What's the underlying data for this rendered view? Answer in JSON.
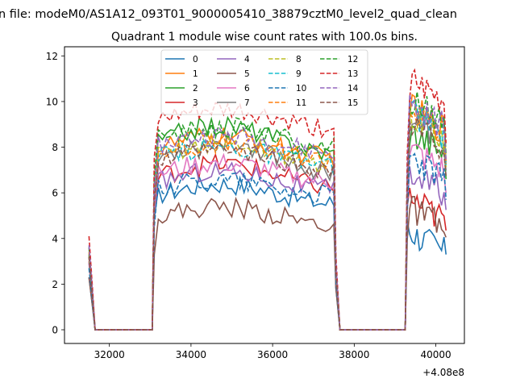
{
  "figure": {
    "suptitle": "n file: modeM0/AS1A12_093T01_9000005410_38879cztM0_level2_quad_clean",
    "offset_label": "+4.08e8"
  },
  "chart_data": {
    "type": "line",
    "title": "Quadrant 1 module wise count rates with 100.0s bins.",
    "xlabel": "",
    "ylabel": "",
    "x_offset": 408000000,
    "xlim": [
      30900,
      40700
    ],
    "ylim": [
      -0.6,
      12.4
    ],
    "xticks": [
      32000,
      34000,
      36000,
      38000,
      40000
    ],
    "xtick_labels": [
      "32000",
      "34000",
      "36000",
      "38000",
      "40000"
    ],
    "yticks": [
      0,
      2,
      4,
      6,
      8,
      10,
      12
    ],
    "ytick_labels": [
      "0",
      "2",
      "4",
      "6",
      "8",
      "10",
      "12"
    ],
    "grid": false,
    "legend_placement": "upper-center",
    "legend_columns": 4,
    "time_segments": [
      [
        31500,
        31600
      ],
      [
        31650,
        33050
      ],
      [
        33100,
        37500
      ],
      [
        37550,
        37650
      ],
      [
        37700,
        39250
      ],
      [
        39300,
        40250
      ]
    ],
    "series": [
      {
        "name": "0",
        "color": "#1f77b4",
        "dash": "solid",
        "seg1": 2.3,
        "on_low": 5.3,
        "on_high": 6.5,
        "seg2": 4.4
      },
      {
        "name": "1",
        "color": "#ff7f0e",
        "dash": "solid",
        "seg1": 3.2,
        "on_low": 7.3,
        "on_high": 8.6,
        "seg2": 9.8
      },
      {
        "name": "2",
        "color": "#2ca02c",
        "dash": "solid",
        "seg1": 3.0,
        "on_low": 7.4,
        "on_high": 9.1,
        "seg2": 8.8
      },
      {
        "name": "3",
        "color": "#d62728",
        "dash": "solid",
        "seg1": 3.0,
        "on_low": 6.0,
        "on_high": 7.4,
        "seg2": 5.8
      },
      {
        "name": "4",
        "color": "#9467bd",
        "dash": "solid",
        "seg1": 2.9,
        "on_low": 5.9,
        "on_high": 7.1,
        "seg2": 7.0
      },
      {
        "name": "5",
        "color": "#8c564b",
        "dash": "solid",
        "seg1": 2.3,
        "on_low": 4.4,
        "on_high": 5.5,
        "seg2": 5.4
      },
      {
        "name": "6",
        "color": "#e377c2",
        "dash": "solid",
        "seg1": 3.0,
        "on_low": 6.3,
        "on_high": 7.4,
        "seg2": 8.0
      },
      {
        "name": "7",
        "color": "#7f7f7f",
        "dash": "solid",
        "seg1": 3.2,
        "on_low": 6.6,
        "on_high": 8.4,
        "seg2": 9.3
      },
      {
        "name": "8",
        "color": "#bcbd22",
        "dash": "dashed",
        "seg1": 3.3,
        "on_low": 7.0,
        "on_high": 8.3,
        "seg2": 9.5
      },
      {
        "name": "9",
        "color": "#17becf",
        "dash": "dashed",
        "seg1": 3.3,
        "on_low": 7.0,
        "on_high": 8.1,
        "seg2": 9.6
      },
      {
        "name": "10",
        "color": "#1f77b4",
        "dash": "dashed",
        "seg1": 2.7,
        "on_low": 5.7,
        "on_high": 6.7,
        "seg2": 7.6
      },
      {
        "name": "11",
        "color": "#ff7f0e",
        "dash": "dashed",
        "seg1": 3.4,
        "on_low": 7.3,
        "on_high": 8.2,
        "seg2": 9.7
      },
      {
        "name": "12",
        "color": "#2ca02c",
        "dash": "dashed",
        "seg1": 3.6,
        "on_low": 7.8,
        "on_high": 9.0,
        "seg2": 10.2
      },
      {
        "name": "13",
        "color": "#d62728",
        "dash": "dashed",
        "seg1": 4.1,
        "on_low": 8.6,
        "on_high": 9.7,
        "seg2": 10.9
      },
      {
        "name": "14",
        "color": "#9467bd",
        "dash": "dashed",
        "seg1": 3.7,
        "on_low": 7.6,
        "on_high": 8.6,
        "seg2": 9.9
      },
      {
        "name": "15",
        "color": "#8c564b",
        "dash": "dashed",
        "seg1": 3.2,
        "on_low": 6.8,
        "on_high": 7.9,
        "seg2": 9.0
      }
    ]
  }
}
